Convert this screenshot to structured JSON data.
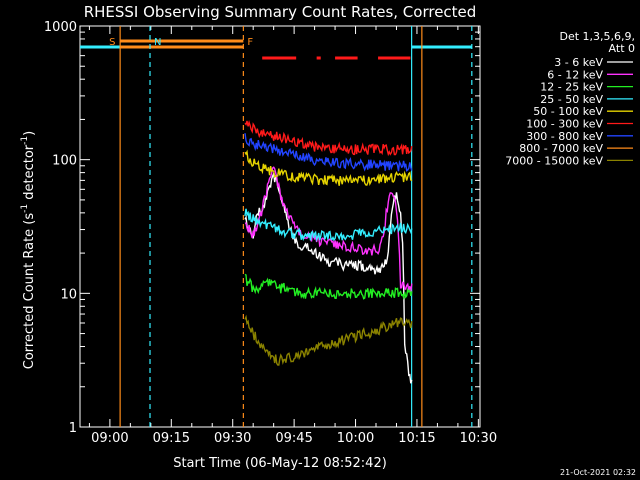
{
  "chart_data": {
    "type": "line",
    "title": "RHESSI Observing Summary Count Rates, Corrected",
    "xlabel": "Start Time (06-May-12 08:52:42)",
    "ylabel_main": "Corrected Count Rate (s",
    "ylabel_sup1": "-1",
    "ylabel_mid": " detector",
    "ylabel_sup2": "-1",
    "ylabel_end": ")",
    "footer": "21-Oct-2021 02:32",
    "yscale": "log",
    "ylim": [
      1,
      1000
    ],
    "xlim_minutes_after_0900": [
      -7.3,
      32.4
    ],
    "xticks": [
      {
        "label": "09:00",
        "m": 0
      },
      {
        "label": "09:15",
        "m": 15
      },
      {
        "label": "09:30",
        "m": 30
      },
      {
        "label": "09:45",
        "m": 45
      },
      {
        "label": "10:00",
        "m": 60
      },
      {
        "label": "10:15",
        "m": 75
      },
      {
        "label": "10:30",
        "m": 90
      }
    ],
    "yticks": [
      {
        "label": "1",
        "v": 1
      },
      {
        "label": "10",
        "v": 10
      },
      {
        "label": "100",
        "v": 100
      },
      {
        "label": "1000",
        "v": 1000
      }
    ],
    "legend_header": [
      "Det 1,3,5,6,9,",
      "Att 0"
    ],
    "legend_placement": "right",
    "series": [
      {
        "name": "3 - 6 keV",
        "color": "#ffffff"
      },
      {
        "name": "6 - 12 keV",
        "color": "#ff33ff"
      },
      {
        "name": "12 - 25 keV",
        "color": "#22ee22"
      },
      {
        "name": "25 - 50 keV",
        "color": "#33eeff"
      },
      {
        "name": "50 - 100 keV",
        "color": "#e6d400"
      },
      {
        "name": "100 - 300 keV",
        "color": "#ff1a1a"
      },
      {
        "name": "300 - 800 keV",
        "color": "#2244ff"
      },
      {
        "name": "800 - 7000 keV",
        "color": "#ff8c1a"
      },
      {
        "name": "7000 - 15000 keV",
        "color": "#8a8200"
      }
    ],
    "series_values": {
      "start_minute": 33.0,
      "end_minute": 74.0,
      "step_minutes": 1,
      "3 - 6 keV": [
        38,
        30,
        26,
        40,
        42,
        50,
        60,
        75,
        65,
        48,
        40,
        30,
        26,
        24,
        22,
        22,
        21,
        20,
        19,
        18,
        18,
        17,
        17,
        17,
        16,
        16,
        16,
        16,
        16,
        16,
        15,
        15,
        15,
        15,
        16,
        20,
        45,
        55,
        40,
        4,
        2.5,
        2
      ],
      "6 - 12 keV": [
        35,
        30,
        28,
        32,
        40,
        55,
        70,
        85,
        65,
        50,
        42,
        36,
        32,
        30,
        28,
        27,
        27,
        26,
        25,
        25,
        24,
        24,
        24,
        23,
        23,
        22,
        22,
        22,
        22,
        21,
        21,
        21,
        21,
        22,
        28,
        50,
        58,
        40,
        12,
        11,
        11,
        11
      ],
      "12 - 25 keV": [
        13,
        12,
        11,
        11,
        12,
        12,
        12,
        12,
        11,
        11,
        11,
        10.5,
        10.5,
        10,
        10,
        10,
        10,
        10,
        10,
        10,
        10,
        10,
        10,
        10,
        10,
        10,
        10,
        10,
        10,
        10,
        10,
        10,
        10,
        10,
        10,
        10,
        10,
        10,
        10,
        10,
        10,
        10
      ],
      "25 - 50 keV": [
        40,
        38,
        36,
        35,
        34,
        33,
        32,
        31,
        30,
        30,
        29,
        28,
        28,
        28,
        27,
        27,
        27,
        27,
        27,
        27,
        27,
        27,
        27,
        27,
        27,
        27,
        27,
        28,
        28,
        28,
        28,
        28,
        29,
        29,
        30,
        30,
        30,
        31,
        31,
        31,
        31,
        31
      ],
      "50 - 100 keV": [
        110,
        100,
        95,
        90,
        88,
        86,
        84,
        82,
        80,
        78,
        77,
        76,
        75,
        75,
        74,
        73,
        72,
        72,
        71,
        70,
        70,
        70,
        70,
        70,
        70,
        70,
        70,
        70,
        70,
        70,
        70,
        70,
        71,
        72,
        72,
        73,
        73,
        74,
        74,
        74,
        74,
        74
      ],
      "100 - 300 keV": [
        185,
        178,
        172,
        166,
        162,
        158,
        155,
        150,
        148,
        145,
        142,
        140,
        138,
        135,
        133,
        130,
        128,
        126,
        125,
        124,
        123,
        122,
        122,
        121,
        121,
        120,
        120,
        120,
        120,
        120,
        120,
        120,
        120,
        120,
        120,
        120,
        120,
        120,
        120,
        120,
        120,
        120
      ],
      "300 - 800 keV": [
        150,
        140,
        135,
        130,
        127,
        124,
        122,
        120,
        118,
        116,
        114,
        112,
        110,
        108,
        106,
        104,
        102,
        100,
        99,
        98,
        97,
        96,
        95,
        95,
        94,
        94,
        93,
        93,
        92,
        92,
        92,
        92,
        91,
        91,
        91,
        90,
        90,
        90,
        90,
        90,
        90,
        90
      ],
      "800 - 7000 keV": [],
      "7000 - 15000 keV": [
        6.5,
        5.5,
        5,
        4.5,
        4,
        3.6,
        3.4,
        3.3,
        3.2,
        3.2,
        3.2,
        3.3,
        3.3,
        3.4,
        3.5,
        3.6,
        3.7,
        3.8,
        3.9,
        4.0,
        4.1,
        4.2,
        4.3,
        4.4,
        4.5,
        4.6,
        4.7,
        4.8,
        4.9,
        5.0,
        5.0,
        5.0,
        5.2,
        5.4,
        5.6,
        5.8,
        6.0,
        6.0,
        6.0,
        6.0,
        6.0,
        6.0
      ]
    },
    "annotations": [
      {
        "label": "S",
        "color": "#ff8c1a",
        "kind": "solid-vertical",
        "m": 2.5
      },
      {
        "label": "N",
        "color": "#33eeff",
        "kind": "dashed-vertical",
        "m": 9.8
      },
      {
        "label": "F",
        "color": "#ff8c1a",
        "kind": "dashed-vertical",
        "m": 32.6
      },
      {
        "label": "",
        "color": "#33eeff",
        "kind": "solid-vertical",
        "m": 73.7
      },
      {
        "label": "",
        "color": "#ff8c1a",
        "kind": "solid-vertical",
        "m": 76.2
      },
      {
        "label": "",
        "color": "#33eeff",
        "kind": "dashed-vertical",
        "m": 88.4
      }
    ],
    "bars_top": [
      {
        "color": "#33eeff",
        "from_m": -7.3,
        "to_m": 2.5
      },
      {
        "color": "#ff8c1a",
        "from_m": 2.5,
        "to_m": 32.6
      },
      {
        "color": "#33eeff",
        "from_m": 73.7,
        "to_m": 88.4
      }
    ],
    "flare_segments": [
      {
        "color": "#ff1a1a",
        "from_m": 37.2,
        "to_m": 45.5
      },
      {
        "color": "#ff1a1a",
        "from_m": 50.5,
        "to_m": 51.5
      },
      {
        "color": "#ff1a1a",
        "from_m": 55.0,
        "to_m": 60.5
      },
      {
        "color": "#ff1a1a",
        "from_m": 65.5,
        "to_m": 73.4
      }
    ]
  }
}
